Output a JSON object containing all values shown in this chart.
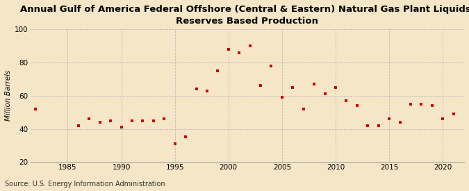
{
  "title_line1": "Annual Gulf of America Federal Offshore (Central & Eastern) Natural Gas Plant Liquids,",
  "title_line2": "Reserves Based Production",
  "ylabel": "Million Barrels",
  "source": "Source: U.S. Energy Information Administration",
  "background_color": "#F5E6C8",
  "plot_bg_color": "#F5E6C8",
  "marker_color": "#CC0000",
  "years": [
    1982,
    1986,
    1987,
    1988,
    1989,
    1990,
    1991,
    1992,
    1993,
    1994,
    1995,
    1996,
    1997,
    1998,
    1999,
    2000,
    2001,
    2002,
    2003,
    2004,
    2005,
    2006,
    2007,
    2008,
    2009,
    2010,
    2011,
    2012,
    2013,
    2014,
    2015,
    2016,
    2017,
    2018,
    2019,
    2020,
    2021
  ],
  "values": [
    52,
    42,
    46,
    44,
    45,
    41,
    45,
    45,
    45,
    46,
    31,
    35,
    64,
    63,
    75,
    88,
    86,
    90,
    66,
    78,
    59,
    65,
    52,
    67,
    61,
    65,
    57,
    54,
    42,
    42,
    46,
    44,
    55,
    55,
    54,
    46,
    49
  ],
  "ylim": [
    20,
    100
  ],
  "yticks": [
    20,
    40,
    60,
    80,
    100
  ],
  "xlim": [
    1981.5,
    2022
  ],
  "xticks": [
    1985,
    1990,
    1995,
    2000,
    2005,
    2010,
    2015,
    2020
  ],
  "title_fontsize": 9.5,
  "ylabel_fontsize": 7.5,
  "source_fontsize": 7,
  "tick_fontsize": 7.5
}
